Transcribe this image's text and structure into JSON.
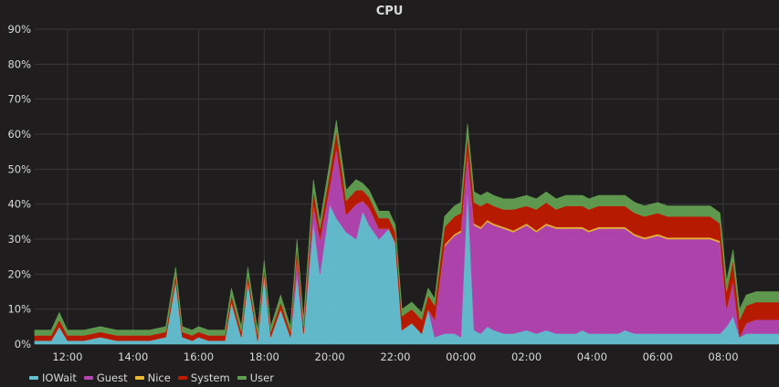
{
  "panel": {
    "title": "CPU"
  },
  "chart_data": {
    "type": "area",
    "stacked": true,
    "title": "CPU",
    "xlabel": "",
    "ylabel": "",
    "x_unit": "hours since 11:00 (axis shows clock time)",
    "x_range": [
      11.0,
      33.7
    ],
    "ylim": [
      0,
      90
    ],
    "y_ticks": [
      "0%",
      "10%",
      "20%",
      "30%",
      "40%",
      "50%",
      "60%",
      "70%",
      "80%",
      "90%"
    ],
    "x_ticks": [
      "12:00",
      "14:00",
      "16:00",
      "18:00",
      "20:00",
      "22:00",
      "00:00",
      "02:00",
      "04:00",
      "06:00",
      "08:00"
    ],
    "grid": true,
    "legend_position": "bottom-left",
    "x": [
      11.0,
      11.5,
      11.75,
      12.0,
      12.5,
      13.0,
      13.5,
      14.0,
      14.5,
      15.0,
      15.3,
      15.5,
      15.8,
      16.0,
      16.3,
      16.6,
      16.8,
      17.0,
      17.3,
      17.5,
      17.8,
      18.0,
      18.2,
      18.5,
      18.8,
      19.0,
      19.2,
      19.5,
      19.7,
      20.0,
      20.2,
      20.5,
      20.8,
      21.0,
      21.2,
      21.5,
      21.8,
      22.0,
      22.2,
      22.5,
      22.8,
      23.0,
      23.2,
      23.5,
      23.8,
      24.0,
      24.2,
      24.4,
      24.6,
      24.8,
      25.0,
      25.3,
      25.6,
      26.0,
      26.3,
      26.6,
      26.9,
      27.2,
      27.5,
      27.7,
      27.9,
      28.2,
      28.5,
      28.8,
      29.0,
      29.3,
      29.6,
      30.0,
      30.3,
      30.6,
      31.0,
      31.3,
      31.6,
      31.9,
      32.1,
      32.3,
      32.5,
      32.7,
      33.0,
      33.3,
      33.7
    ],
    "series": [
      {
        "name": "IOWait",
        "color": "#64c1d2",
        "values": [
          1,
          1,
          5,
          1,
          1,
          2,
          1,
          1,
          1,
          2,
          18,
          2,
          1,
          2,
          1,
          1,
          1,
          12,
          2,
          18,
          1,
          20,
          2,
          10,
          2,
          20,
          3,
          35,
          20,
          40,
          36,
          32,
          30,
          38,
          34,
          30,
          33,
          29,
          4,
          6,
          3,
          10,
          2,
          3,
          3,
          2,
          45,
          4,
          3,
          5,
          4,
          3,
          3,
          4,
          3,
          4,
          3,
          3,
          3,
          4,
          3,
          3,
          3,
          3,
          4,
          3,
          3,
          3,
          3,
          3,
          3,
          3,
          3,
          3,
          5,
          8,
          2,
          3,
          3,
          3,
          3
        ]
      },
      {
        "name": "Guest",
        "color": "#b545b3",
        "values": [
          0,
          0,
          0,
          0,
          0,
          0,
          0,
          0,
          0,
          0,
          0,
          0,
          0,
          0,
          0,
          0,
          0,
          0,
          0,
          0,
          0,
          0,
          0,
          0,
          0,
          5,
          0,
          5,
          10,
          5,
          20,
          5,
          10,
          3,
          5,
          3,
          0,
          0,
          0,
          0,
          0,
          0,
          5,
          25,
          28,
          30,
          10,
          30,
          30,
          30,
          30,
          30,
          29,
          30,
          29,
          30,
          30,
          30,
          30,
          29,
          29,
          30,
          30,
          30,
          29,
          28,
          27,
          28,
          27,
          27,
          27,
          27,
          27,
          26,
          5,
          10,
          0,
          3,
          4,
          4,
          4
        ]
      },
      {
        "name": "Nice",
        "color": "#e8b935",
        "values": [
          0,
          0,
          0,
          0,
          0,
          0,
          0,
          0,
          0,
          0,
          0,
          0,
          0,
          0,
          0,
          0,
          0,
          0,
          0,
          0,
          0,
          0,
          0,
          0,
          0,
          0,
          0,
          0,
          0,
          0,
          0,
          0,
          0,
          0,
          0,
          0,
          0,
          0,
          0,
          0,
          0,
          0,
          0,
          0.5,
          0.5,
          0.5,
          0,
          0.5,
          0.5,
          0.5,
          0.5,
          0.5,
          0.5,
          0.5,
          0.5,
          0.5,
          0.5,
          0.5,
          0.5,
          0.5,
          0.5,
          0.5,
          0.5,
          0.5,
          0.5,
          0.5,
          0.5,
          0.5,
          0.5,
          0.5,
          0.5,
          0.5,
          0.5,
          0.5,
          0,
          0,
          0,
          0,
          0,
          0,
          0
        ]
      },
      {
        "name": "System",
        "color": "#bf1b00",
        "values": [
          1.5,
          1.5,
          2,
          1.5,
          1.5,
          1.5,
          1.5,
          1.5,
          1.5,
          1.5,
          2,
          1.5,
          1.5,
          1.5,
          1.5,
          1.5,
          1.5,
          2,
          1.5,
          2,
          1.5,
          2,
          1.5,
          2,
          1.5,
          3,
          2,
          4,
          3,
          4,
          5,
          4,
          4,
          3,
          3,
          3,
          3,
          3,
          4,
          4,
          4,
          4,
          4,
          5,
          5,
          5,
          5,
          6,
          6,
          5,
          5,
          5,
          6,
          5,
          6,
          6,
          5,
          6,
          6,
          6,
          6,
          6,
          6,
          6,
          6,
          6,
          6,
          6,
          6,
          6,
          6,
          6,
          6,
          5,
          5,
          6,
          5,
          5,
          5,
          5,
          5
        ]
      },
      {
        "name": "User",
        "color": "#629e51",
        "values": [
          1.5,
          1.5,
          2,
          1.5,
          1.5,
          1.5,
          1.5,
          1.5,
          1.5,
          1.5,
          2,
          1.5,
          1.5,
          1.5,
          1.5,
          1.5,
          1.5,
          2,
          1.5,
          2,
          1.5,
          2,
          1.5,
          2,
          1.5,
          2,
          2,
          3,
          2,
          3,
          3,
          3,
          3,
          2,
          2,
          2,
          2,
          2,
          2,
          2,
          2,
          2,
          2,
          3,
          3,
          3,
          3,
          3,
          3,
          3,
          3,
          3,
          3,
          3,
          3,
          3,
          3,
          3,
          3,
          3,
          3,
          3,
          3,
          3,
          3,
          3,
          3,
          3,
          3,
          3,
          3,
          3,
          3,
          3,
          3,
          3,
          3,
          3,
          3,
          3,
          3
        ]
      }
    ]
  }
}
